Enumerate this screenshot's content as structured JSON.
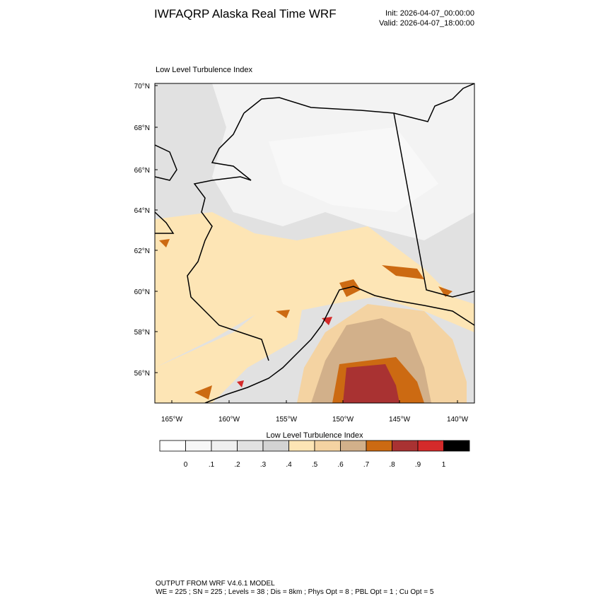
{
  "header": {
    "title": "IWFAQRP Alaska Real Time WRF",
    "init": "Init: 2026-04-07_00:00:00",
    "valid": "Valid: 2026-04-07_18:00:00"
  },
  "map": {
    "subtitle": "Low Level Turbulence Index",
    "lat_labels": [
      "70°N",
      "68°N",
      "66°N",
      "64°N",
      "62°N",
      "60°N",
      "58°N",
      "56°N"
    ],
    "lon_labels": [
      "165°W",
      "160°W",
      "155°W",
      "150°W",
      "145°W",
      "140°W"
    ]
  },
  "colorbar": {
    "title": "Low Level Turbulence Index",
    "labels": [
      "0",
      ".1",
      ".2",
      ".3",
      ".4",
      ".5",
      ".6",
      ".7",
      ".8",
      ".9",
      "1"
    ],
    "colors": [
      "#ffffff",
      "#f7f7f7",
      "#efefef",
      "#e1e1e1",
      "#d3d3d3",
      "#fde5b5",
      "#f4d3a2",
      "#d2b08a",
      "#cc6a12",
      "#a93232",
      "#d42a2a",
      "#000000"
    ]
  },
  "footer": {
    "line1": "OUTPUT FROM WRF V4.6.1 MODEL",
    "line2": "WE = 225 ; SN = 225 ; Levels = 38 ; Dis = 8km ; Phys Opt = 8 ; PBL Opt = 1 ; Cu Opt = 5"
  }
}
